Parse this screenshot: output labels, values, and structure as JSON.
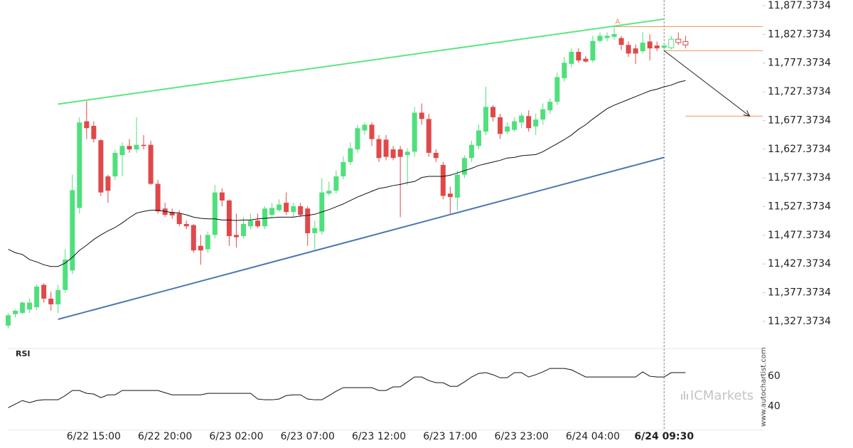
{
  "chart_data": {
    "type": "candlestick",
    "categories": [
      null,
      null,
      null,
      null,
      null,
      null,
      null,
      null,
      null,
      null,
      null,
      null,
      "6/22 15:00",
      null,
      null,
      null,
      null,
      null,
      null,
      null,
      null,
      null,
      "6/22 20:00",
      null,
      null,
      null,
      null,
      null,
      null,
      null,
      null,
      null,
      "6/23 02:00",
      null,
      null,
      null,
      null,
      null,
      null,
      null,
      null,
      null,
      "6/23 07:00",
      null,
      null,
      null,
      null,
      null,
      null,
      null,
      null,
      null,
      "6/23 12:00",
      null,
      null,
      null,
      null,
      null,
      null,
      null,
      null,
      null,
      "6/23 17:00",
      null,
      null,
      null,
      null,
      null,
      null,
      null,
      null,
      null,
      "6/23 23:00",
      null,
      null,
      null,
      null,
      null,
      null,
      null,
      null,
      null,
      "6/24 04:00",
      null,
      null,
      null,
      null,
      null,
      null,
      null,
      null,
      null,
      "6/24 09:30",
      null,
      null,
      null
    ],
    "open": [
      11320,
      11340,
      11342,
      11348,
      11352,
      11391,
      11367,
      11357,
      11382,
      11416,
      11525,
      11676,
      11668,
      11643,
      11580,
      11580,
      11617,
      11633,
      11627,
      11635,
      11635,
      11567,
      11524,
      11518,
      11515,
      11497,
      11495,
      11459,
      11453,
      11478,
      11552,
      11538,
      11478,
      11476,
      11493,
      11503,
      11493,
      11513,
      11521,
      11534,
      11518,
      11528,
      11524,
      11481,
      11484,
      11550,
      11555,
      11580,
      11605,
      11627,
      11660,
      11670,
      11645,
      11644,
      11627,
      11627,
      11617,
      11623,
      11691,
      11680,
      11621,
      11600,
      11550,
      11543,
      11583,
      11612,
      11633,
      11658,
      11701,
      11683,
      11658,
      11661,
      11674,
      11685,
      11667,
      11679,
      11695,
      11710,
      11751,
      11776,
      11797,
      11785,
      11782,
      11816,
      11821,
      11823,
      11821,
      11809,
      11803,
      11798,
      11815,
      11808,
      11804,
      11804,
      11819,
      11815
    ],
    "high": [
      11342,
      11348,
      11362,
      11367,
      11391,
      11394,
      11379,
      11391,
      11453,
      11583,
      11683,
      11711,
      11676,
      11645,
      11583,
      11627,
      11639,
      11645,
      11683,
      11652,
      11642,
      11574,
      11534,
      11524,
      11521,
      11503,
      11497,
      11478,
      11484,
      11565,
      11559,
      11540,
      11515,
      11509,
      11515,
      11515,
      11528,
      11534,
      11540,
      11552,
      11534,
      11534,
      11528,
      11503,
      11577,
      11571,
      11590,
      11615,
      11639,
      11670,
      11674,
      11674,
      11652,
      11652,
      11633,
      11633,
      11629,
      11701,
      11707,
      11689,
      11627,
      11605,
      11562,
      11590,
      11617,
      11642,
      11670,
      11736,
      11704,
      11689,
      11674,
      11683,
      11691,
      11695,
      11689,
      11707,
      11716,
      11761,
      11788,
      11803,
      11803,
      11790,
      11825,
      11831,
      11831,
      11840,
      11825,
      11815,
      11810,
      11831,
      11828,
      11815,
      11813,
      11825,
      11831,
      11825
    ],
    "low": [
      11315,
      11334,
      11340,
      11342,
      11347,
      11360,
      11346,
      11342,
      11377,
      11410,
      11515,
      11645,
      11639,
      11546,
      11534,
      11574,
      11580,
      11621,
      11621,
      11627,
      11565,
      11515,
      11509,
      11506,
      11493,
      11488,
      11447,
      11426,
      11447,
      11472,
      11528,
      11459,
      11456,
      11472,
      11488,
      11490,
      11488,
      11509,
      11518,
      11513,
      11509,
      11509,
      11459,
      11451,
      11478,
      11546,
      11550,
      11575,
      11600,
      11621,
      11652,
      11633,
      11605,
      11608,
      11608,
      11509,
      11565,
      11614,
      11670,
      11614,
      11605,
      11540,
      11515,
      11521,
      11577,
      11605,
      11627,
      11652,
      11676,
      11645,
      11654,
      11658,
      11664,
      11658,
      11652,
      11670,
      11689,
      11704,
      11745,
      11770,
      11778,
      11778,
      11778,
      11813,
      11815,
      11818,
      11800,
      11788,
      11776,
      11794,
      11782,
      11798,
      11798,
      11801,
      11809,
      11803
    ],
    "close": [
      11338,
      11346,
      11360,
      11360,
      11388,
      11367,
      11357,
      11382,
      11435,
      11556,
      11674,
      11664,
      11645,
      11552,
      11555,
      11621,
      11633,
      11627,
      11635,
      11633,
      11567,
      11519,
      11513,
      11512,
      11497,
      11493,
      11451,
      11451,
      11478,
      11552,
      11538,
      11476,
      11474,
      11497,
      11503,
      11493,
      11524,
      11525,
      11531,
      11518,
      11528,
      11513,
      11481,
      11490,
      11552,
      11555,
      11580,
      11605,
      11629,
      11664,
      11670,
      11645,
      11612,
      11614,
      11612,
      11614,
      11623,
      11691,
      11680,
      11621,
      11612,
      11546,
      11544,
      11583,
      11612,
      11635,
      11660,
      11701,
      11683,
      11654,
      11667,
      11676,
      11686,
      11664,
      11679,
      11697,
      11710,
      11753,
      11778,
      11797,
      11782,
      11780,
      11816,
      11825,
      11825,
      11828,
      11809,
      11794,
      11794,
      11813,
      11803,
      11803,
      11808,
      11819,
      11813,
      11809
    ],
    "up_color": "#4fe07c",
    "down_color": "#e0484a",
    "ylim": [
      11280.2,
      11887.3
    ],
    "yticks": [
      {
        "value": 11877.3734,
        "label": "11,877.3734"
      },
      {
        "value": 11827.3734,
        "label": "11,827.3734"
      },
      {
        "value": 11777.3734,
        "label": "11,777.3734"
      },
      {
        "value": 11727.3734,
        "label": "11,727.3734"
      },
      {
        "value": 11677.3734,
        "label": "11,677.3734"
      },
      {
        "value": 11627.3734,
        "label": "11,627.3734"
      },
      {
        "value": 11577.3734,
        "label": "11,577.3734"
      },
      {
        "value": 11527.3734,
        "label": "11,527.3734"
      },
      {
        "value": 11477.3734,
        "label": "11,477.3734"
      },
      {
        "value": 11427.3734,
        "label": "11,427.3734"
      },
      {
        "value": 11377.3734,
        "label": "11,377.3734"
      },
      {
        "value": 11327.3734,
        "label": "11,327.3734"
      }
    ],
    "moving_average": {
      "color": "#111111",
      "values": [
        11453,
        11447,
        11444,
        11435,
        11431,
        11426,
        11423,
        11423,
        11429,
        11439,
        11451,
        11460,
        11470,
        11478,
        11485,
        11491,
        11499,
        11508,
        11516,
        11519,
        11521,
        11521,
        11519,
        11517,
        11516,
        11513,
        11509,
        11507,
        11506,
        11506,
        11504,
        11504,
        11503,
        11504,
        11504,
        11506,
        11507,
        11508,
        11509,
        11509,
        11509,
        11511,
        11512,
        11514,
        11518,
        11522,
        11527,
        11532,
        11538,
        11544,
        11549,
        11554,
        11559,
        11561,
        11564,
        11566,
        11569,
        11571,
        11578,
        11580,
        11580,
        11580,
        11582,
        11586,
        11590,
        11594,
        11599,
        11602,
        11605,
        11608,
        11612,
        11613,
        11616,
        11617,
        11618,
        11623,
        11630,
        11637,
        11644,
        11652,
        11662,
        11670,
        11680,
        11689,
        11698,
        11704,
        11709,
        11714,
        11719,
        11724,
        11729,
        11732,
        11736,
        11739,
        11744,
        11747
      ]
    },
    "channel_upper": {
      "color": "#5ce680",
      "x": [
        7,
        92
      ],
      "values": [
        11706,
        11854
      ]
    },
    "channel_lower": {
      "color": "#4a78b2",
      "x": [
        7,
        92
      ],
      "values": [
        11331,
        11613
      ]
    },
    "level_color": "#f0905a",
    "levels": [
      {
        "value": 11841,
        "from": 85,
        "label": "A"
      },
      {
        "value": 11799,
        "from": 92
      },
      {
        "value": 11685,
        "from": 95
      }
    ],
    "forecast": {
      "color": "#222222",
      "x": [
        92,
        104
      ],
      "values": [
        11799,
        11685
      ]
    },
    "rsi": {
      "title": "RSI",
      "color": "#111111",
      "ylim": [
        24,
        79
      ],
      "yticks": [
        40,
        60
      ],
      "values": [
        39.0,
        41.4,
        43.8,
        42.4,
        43.8,
        44.3,
        44.3,
        44.3,
        47.1,
        50.5,
        50.5,
        48.6,
        48.1,
        45.7,
        47.6,
        47.6,
        50.5,
        50.5,
        50.5,
        50.5,
        50.5,
        50.5,
        49.0,
        47.6,
        47.6,
        47.6,
        47.6,
        47.6,
        48.6,
        48.6,
        48.6,
        48.6,
        48.6,
        48.6,
        48.6,
        44.8,
        44.3,
        44.3,
        44.8,
        47.1,
        47.6,
        47.6,
        44.8,
        44.3,
        44.3,
        47.1,
        50.0,
        52.4,
        52.4,
        52.4,
        52.4,
        52.4,
        50.5,
        50.5,
        52.9,
        52.9,
        56.2,
        59.5,
        59.5,
        57.1,
        55.7,
        55.7,
        53.3,
        53.3,
        56.2,
        59.5,
        61.9,
        62.4,
        61.0,
        59.0,
        59.0,
        62.4,
        62.4,
        59.5,
        61.0,
        62.9,
        65.2,
        65.2,
        65.2,
        64.3,
        61.9,
        59.5,
        59.5,
        59.5,
        59.5,
        59.5,
        59.5,
        59.5,
        59.5,
        62.9,
        60.0,
        59.5,
        59.5,
        62.4,
        62.4,
        62.4
      ]
    },
    "logo": "ICMarkets",
    "watermark": "www.autochartist.com"
  }
}
